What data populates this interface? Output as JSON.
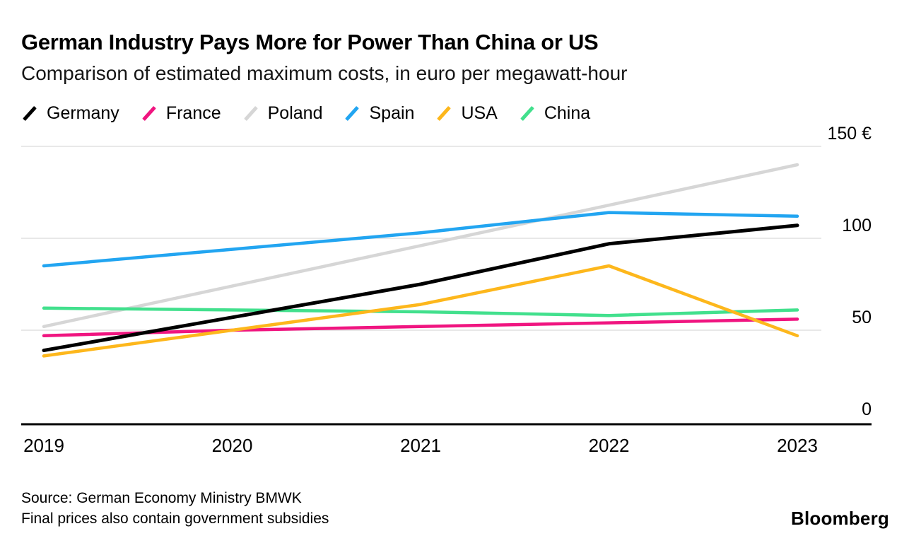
{
  "header": {
    "title": "German Industry Pays More for Power Than China or US",
    "subtitle": "Comparison of estimated maximum costs, in euro per megawatt-hour"
  },
  "legend": {
    "items": [
      {
        "label": "Germany",
        "color": "#000000"
      },
      {
        "label": "France",
        "color": "#f01580"
      },
      {
        "label": "Poland",
        "color": "#d6d6d6"
      },
      {
        "label": "Spain",
        "color": "#22a5f1"
      },
      {
        "label": "USA",
        "color": "#fdb71c"
      },
      {
        "label": "China",
        "color": "#42e08d"
      }
    ]
  },
  "chart_data": {
    "type": "line",
    "title": "German Industry Pays More for Power Than China or US",
    "subtitle": "Comparison of estimated maximum costs, in euro per megawatt-hour",
    "x": [
      "2019",
      "2020",
      "2021",
      "2022",
      "2023"
    ],
    "ylim": [
      0,
      150
    ],
    "yticks": [
      150,
      100,
      50,
      0
    ],
    "ytick_labels": [
      "150 €",
      "100",
      "50",
      "0"
    ],
    "grid": true,
    "legend_position": "top",
    "series": [
      {
        "name": "Poland",
        "color": "#d6d6d6",
        "values": [
          52,
          74,
          96,
          118,
          140
        ]
      },
      {
        "name": "China",
        "color": "#42e08d",
        "values": [
          62,
          61,
          60,
          58,
          61
        ]
      },
      {
        "name": "France",
        "color": "#f01580",
        "values": [
          47,
          50,
          52,
          54,
          56
        ]
      },
      {
        "name": "USA",
        "color": "#fdb71c",
        "values": [
          36,
          50,
          64,
          85,
          47
        ]
      },
      {
        "name": "Spain",
        "color": "#22a5f1",
        "values": [
          85,
          94,
          103,
          114,
          112
        ]
      },
      {
        "name": "Germany",
        "color": "#000000",
        "values": [
          39,
          57,
          75,
          97,
          107
        ]
      }
    ]
  },
  "footer": {
    "source_line1": "Source: German Economy Ministry BMWK",
    "source_line2": "Final prices also contain government subsidies",
    "brand": "Bloomberg"
  }
}
